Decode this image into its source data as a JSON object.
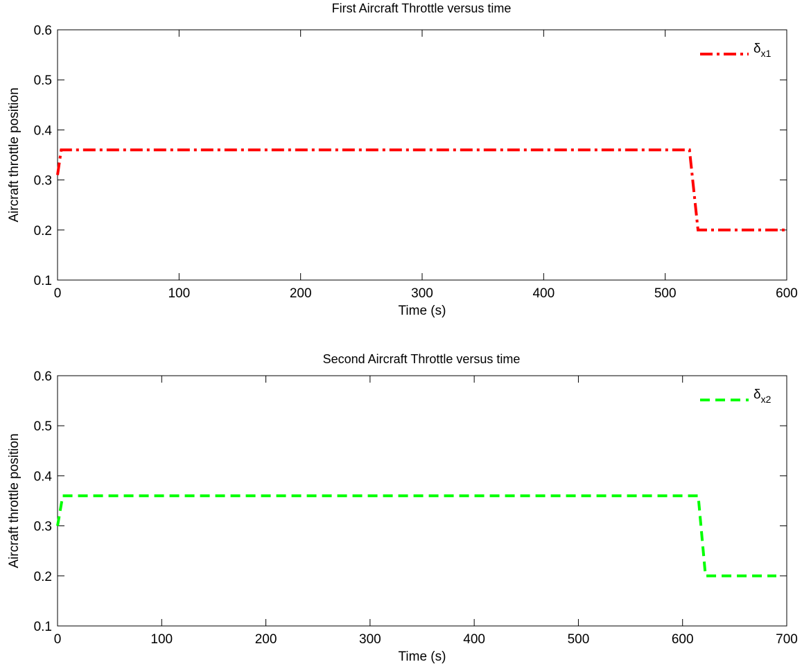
{
  "chart_data": [
    {
      "type": "line",
      "title": "First  Aircraft Throttle versus time",
      "xlabel": "Time (s)",
      "ylabel": "Aircraft throttle position",
      "xlim": [
        0,
        600
      ],
      "ylim": [
        0.1,
        0.6
      ],
      "xticks": [
        0,
        100,
        200,
        300,
        400,
        500,
        600
      ],
      "yticks": [
        0.1,
        0.2,
        0.3,
        0.4,
        0.5,
        0.6
      ],
      "xtick_labels": [
        "0",
        "100",
        "200",
        "300",
        "400",
        "500",
        "600"
      ],
      "ytick_labels": [
        "0.1",
        "0.2",
        "0.3",
        "0.4",
        "0.5",
        "0.6"
      ],
      "grid": false,
      "legend_position": "top-right",
      "series": [
        {
          "legend_symbol": "δ",
          "legend_subscript": "x1",
          "color": "#ff0000",
          "line_style": "dash-dot",
          "x": [
            0,
            3,
            520,
            527,
            600
          ],
          "y": [
            0.31,
            0.36,
            0.36,
            0.2,
            0.2
          ]
        }
      ]
    },
    {
      "type": "line",
      "title": "Second Aircraft Throttle versus time",
      "xlabel": "Time (s)",
      "ylabel": "Aircraft throttle position",
      "xlim": [
        0,
        700
      ],
      "ylim": [
        0.1,
        0.6
      ],
      "xticks": [
        0,
        100,
        200,
        300,
        400,
        500,
        600,
        700
      ],
      "yticks": [
        0.1,
        0.2,
        0.3,
        0.4,
        0.5,
        0.6
      ],
      "xtick_labels": [
        "0",
        "100",
        "200",
        "300",
        "400",
        "500",
        "600",
        "700"
      ],
      "ytick_labels": [
        "0.1",
        "0.2",
        "0.3",
        "0.4",
        "0.5",
        "0.6"
      ],
      "grid": false,
      "legend_position": "top-right",
      "series": [
        {
          "legend_symbol": "δ",
          "legend_subscript": "x2",
          "color": "#00ff00",
          "line_style": "dashed",
          "x": [
            0,
            5,
            615,
            622,
            690
          ],
          "y": [
            0.3,
            0.36,
            0.36,
            0.2,
            0.2
          ]
        }
      ]
    }
  ]
}
